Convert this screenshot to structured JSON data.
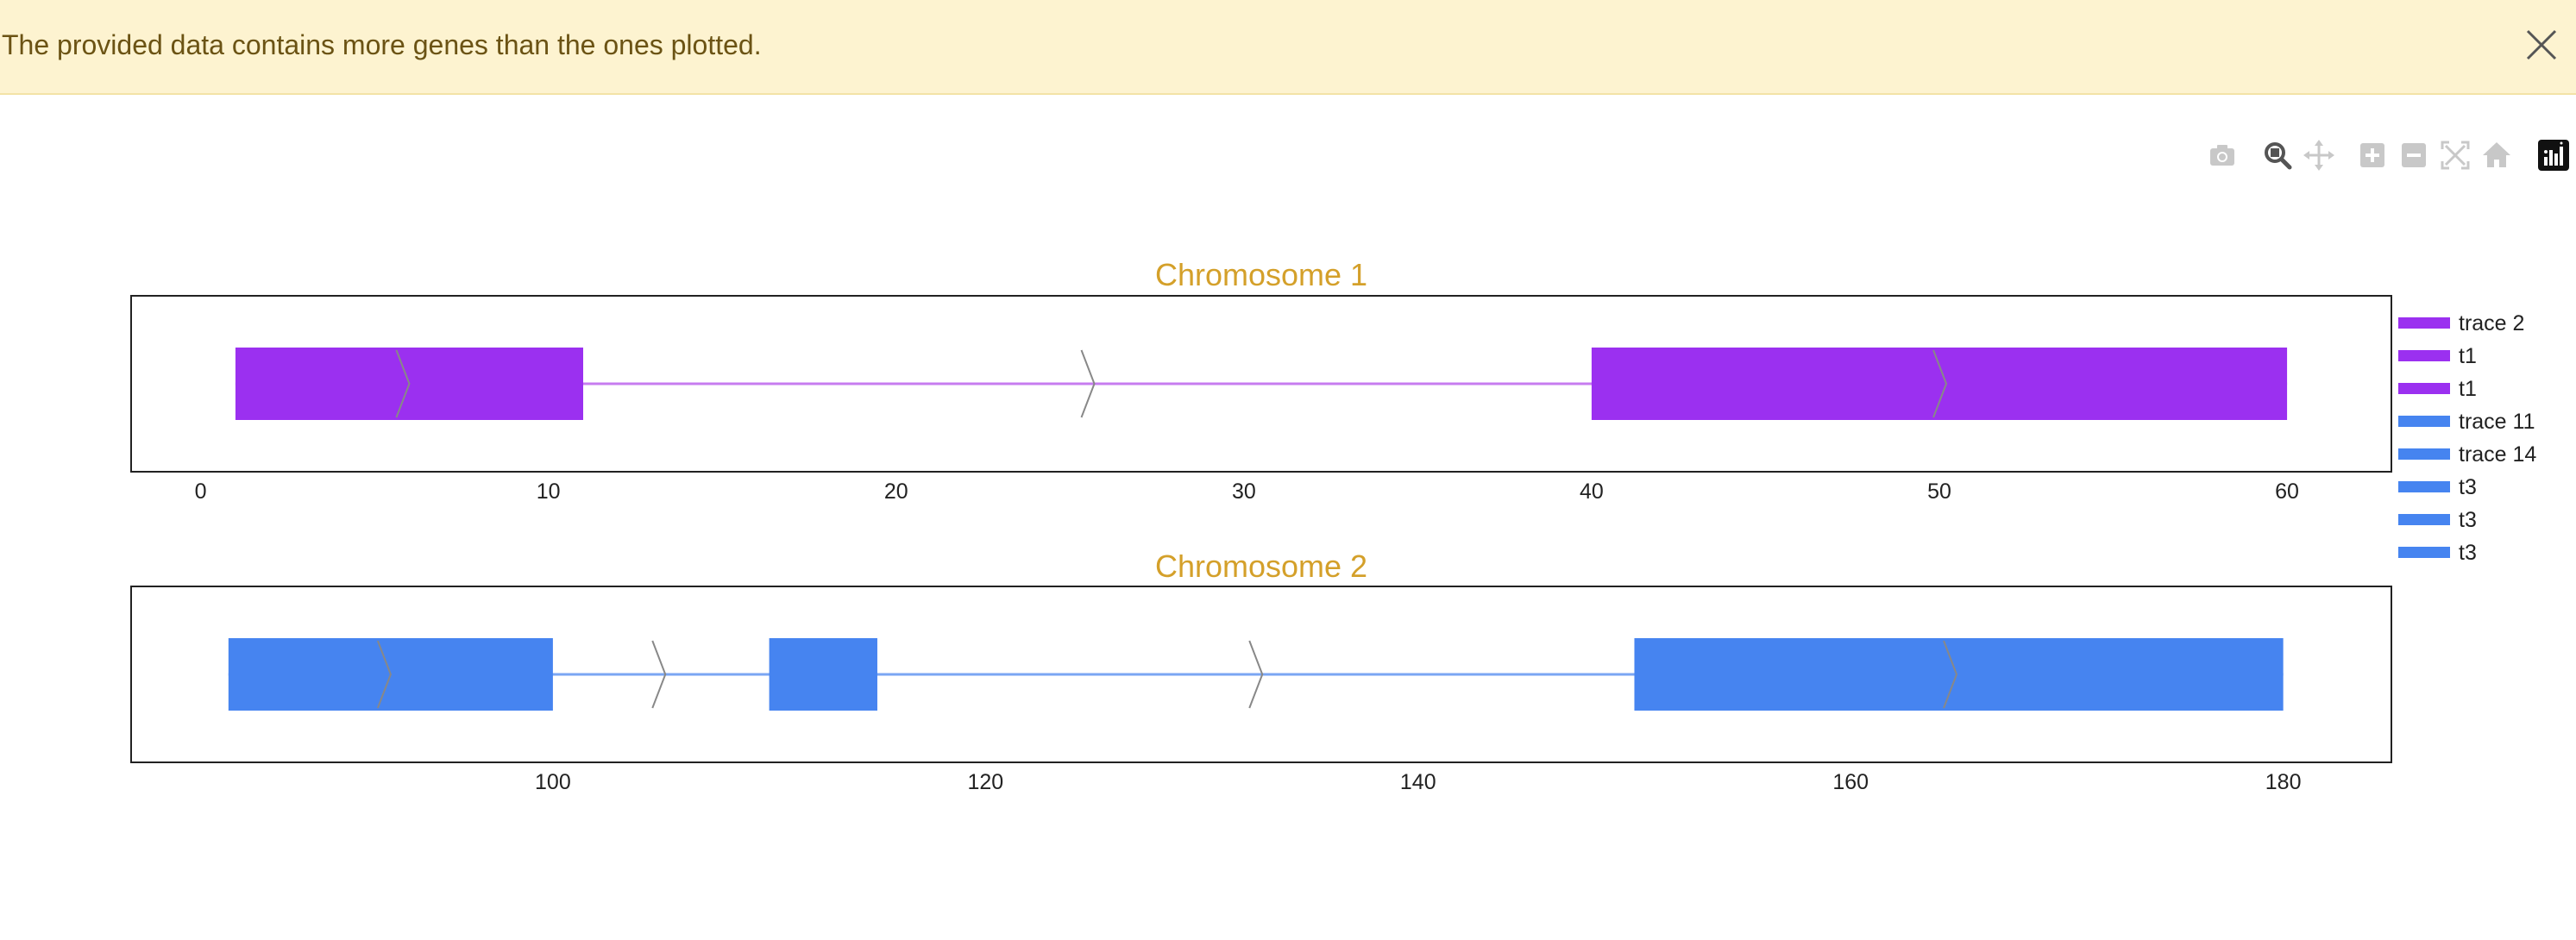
{
  "banner": {
    "message": "The provided data contains more genes than the ones plotted.",
    "close_icon": "close-icon"
  },
  "modebar": {
    "buttons": [
      "camera-icon",
      "zoom-icon",
      "pan-icon",
      "zoom-in-icon",
      "zoom-out-icon",
      "autoscale-icon",
      "reset-axes-icon",
      "plotly-logo-icon"
    ]
  },
  "colors": {
    "purple": "#9b30f0",
    "purple_line": "#c77cf0",
    "blue": "#4684f0",
    "blue_line": "#7aa6f3",
    "arrow": "#888888",
    "title": "#d4a02a",
    "banner_bg": "#fdf3d0"
  },
  "chart_data": [
    {
      "type": "gene-track",
      "title": "Chromosome 1",
      "xlim": [
        -2,
        63
      ],
      "ticks": [
        0,
        10,
        20,
        30,
        40,
        50,
        60
      ],
      "color": "#9b30f0",
      "line_color": "#c77cf0",
      "intron_line": [
        1,
        60
      ],
      "exons": [
        [
          1,
          11
        ],
        [
          40,
          60
        ]
      ],
      "strand_arrows": [
        6,
        25.7,
        50.2
      ]
    },
    {
      "type": "gene-track",
      "title": "Chromosome 2",
      "xlim": [
        80.5,
        185
      ],
      "ticks": [
        100,
        120,
        140,
        160,
        180
      ],
      "color": "#4684f0",
      "line_color": "#7aa6f3",
      "intron_line": [
        85,
        180
      ],
      "exons": [
        [
          85,
          100
        ],
        [
          110,
          115
        ],
        [
          150,
          180
        ]
      ],
      "strand_arrows": [
        92.5,
        105.2,
        132.8,
        164.9
      ]
    }
  ],
  "legend": {
    "items": [
      {
        "label": "trace 2",
        "color": "#9b30f0"
      },
      {
        "label": "t1",
        "color": "#9b30f0"
      },
      {
        "label": "t1",
        "color": "#9b30f0"
      },
      {
        "label": "trace 11",
        "color": "#4684f0"
      },
      {
        "label": "trace 14",
        "color": "#4684f0"
      },
      {
        "label": "t3",
        "color": "#4684f0"
      },
      {
        "label": "t3",
        "color": "#4684f0"
      },
      {
        "label": "t3",
        "color": "#4684f0"
      }
    ]
  }
}
